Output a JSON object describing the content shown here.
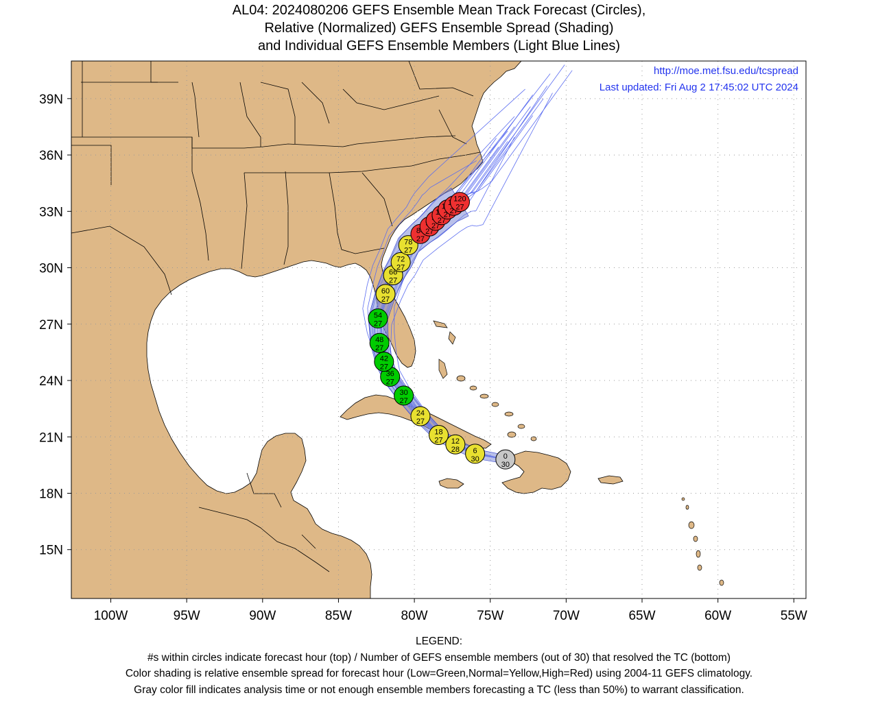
{
  "title": {
    "line1": "AL04: 2024080206 GEFS Ensemble Mean Track Forecast (Circles),",
    "line2": "Relative (Normalized) GEFS Ensemble Spread (Shading)",
    "line3": "and Individual GEFS Ensemble Members (Light Blue Lines)"
  },
  "credits": {
    "url": "http://moe.met.fsu.edu/tcspread",
    "updated": "Last updated: Fri Aug 2 17:45:02 UTC 2024"
  },
  "axes": {
    "lon_ticks": [
      {
        "lon": -100,
        "label": "100W"
      },
      {
        "lon": -95,
        "label": "95W"
      },
      {
        "lon": -90,
        "label": "90W"
      },
      {
        "lon": -85,
        "label": "85W"
      },
      {
        "lon": -80,
        "label": "80W"
      },
      {
        "lon": -75,
        "label": "75W"
      },
      {
        "lon": -70,
        "label": "70W"
      },
      {
        "lon": -65,
        "label": "65W"
      },
      {
        "lon": -60,
        "label": "60W"
      },
      {
        "lon": -55,
        "label": "55W"
      }
    ],
    "lat_ticks": [
      {
        "lat": 15,
        "label": "15N"
      },
      {
        "lat": 18,
        "label": "18N"
      },
      {
        "lat": 21,
        "label": "21N"
      },
      {
        "lat": 24,
        "label": "24N"
      },
      {
        "lat": 27,
        "label": "27N"
      },
      {
        "lat": 30,
        "label": "30N"
      },
      {
        "lat": 33,
        "label": "33N"
      },
      {
        "lat": 36,
        "label": "36N"
      },
      {
        "lat": 39,
        "label": "39N"
      }
    ],
    "lon_range": [
      -102.6,
      -54.2
    ],
    "lat_range": [
      12.4,
      41.0
    ]
  },
  "colors": {
    "land": "#deb887",
    "ocean": "#ffffff",
    "member_line": "#5a6cf0",
    "spread_shading": "#7f8cd8",
    "low_spread": "#00cc00",
    "normal_spread": "#e8e030",
    "high_spread": "#ee3030",
    "analysis": "#c8c8c8"
  },
  "track": [
    {
      "hour": "0",
      "members": "30",
      "lon": -74.0,
      "lat": 19.8,
      "spread": "analysis"
    },
    {
      "hour": "6",
      "members": "30",
      "lon": -76.0,
      "lat": 20.1,
      "spread": "normal"
    },
    {
      "hour": "12",
      "members": "28",
      "lon": -77.3,
      "lat": 20.6,
      "spread": "normal"
    },
    {
      "hour": "18",
      "members": "27",
      "lon": -78.4,
      "lat": 21.1,
      "spread": "normal"
    },
    {
      "hour": "24",
      "members": "27",
      "lon": -79.6,
      "lat": 22.1,
      "spread": "normal"
    },
    {
      "hour": "30",
      "members": "27",
      "lon": -80.7,
      "lat": 23.2,
      "spread": "low"
    },
    {
      "hour": "36",
      "members": "27",
      "lon": -81.6,
      "lat": 24.2,
      "spread": "low"
    },
    {
      "hour": "42",
      "members": "27",
      "lon": -82.0,
      "lat": 25.0,
      "spread": "low"
    },
    {
      "hour": "48",
      "members": "27",
      "lon": -82.3,
      "lat": 26.0,
      "spread": "low"
    },
    {
      "hour": "54",
      "members": "27",
      "lon": -82.4,
      "lat": 27.3,
      "spread": "low"
    },
    {
      "hour": "60",
      "members": "27",
      "lon": -81.9,
      "lat": 28.6,
      "spread": "normal"
    },
    {
      "hour": "66",
      "members": "27",
      "lon": -81.4,
      "lat": 29.6,
      "spread": "normal"
    },
    {
      "hour": "72",
      "members": "27",
      "lon": -80.9,
      "lat": 30.3,
      "spread": "normal"
    },
    {
      "hour": "78",
      "members": "27",
      "lon": -80.4,
      "lat": 31.2,
      "spread": "normal"
    },
    {
      "hour": "84",
      "members": "27",
      "lon": -79.6,
      "lat": 31.8,
      "spread": "high"
    },
    {
      "hour": "90",
      "members": "27",
      "lon": -79.0,
      "lat": 32.2,
      "spread": "high"
    },
    {
      "hour": "96",
      "members": "27",
      "lon": -78.6,
      "lat": 32.5,
      "spread": "high"
    },
    {
      "hour": "102",
      "members": "27",
      "lon": -78.2,
      "lat": 32.8,
      "spread": "high"
    },
    {
      "hour": "108",
      "members": "27",
      "lon": -77.8,
      "lat": 33.1,
      "spread": "high"
    },
    {
      "hour": "114",
      "members": "27",
      "lon": -77.4,
      "lat": 33.3,
      "spread": "high"
    },
    {
      "hour": "120",
      "members": "27",
      "lon": -77.0,
      "lat": 33.5,
      "spread": "high"
    }
  ],
  "legend": {
    "heading": "LEGEND:",
    "line1": "#s within circles indicate forecast hour (top) / Number of GEFS ensemble members (out of 30) that resolved the TC (bottom)",
    "line2": "Color shading is relative ensemble spread for forecast hour (Low=Green,Normal=Yellow,High=Red) using 2004-11 GEFS climatology.",
    "line3": "Gray color fill indicates analysis time or not enough ensemble members forecasting a TC (less than 50%) to warrant classification."
  }
}
